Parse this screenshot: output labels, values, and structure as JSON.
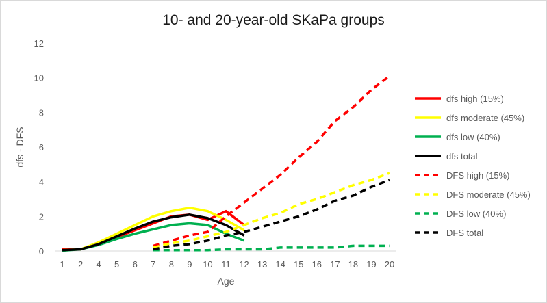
{
  "chart_data": {
    "type": "line",
    "title": "10- and 20-year-old SKaPa groups",
    "xlabel": "Age",
    "ylabel": "dfs - DFS",
    "categories": [
      "1",
      "2",
      "4",
      "5",
      "6",
      "7",
      "8",
      "9",
      "10",
      "11",
      "12",
      "13",
      "14",
      "15",
      "16",
      "17",
      "18",
      "19",
      "20"
    ],
    "ylim": [
      0,
      12
    ],
    "yticks": [
      "0",
      "2",
      "4",
      "6",
      "8",
      "10",
      "12"
    ],
    "grid": false,
    "legend_position": "right",
    "series": [
      {
        "name": "dfs high (15%)",
        "color": "#ff0000",
        "dash": false,
        "values": [
          0.1,
          0.1,
          0.4,
          0.8,
          1.2,
          1.6,
          2.0,
          2.1,
          1.8,
          2.3,
          1.5,
          null,
          null,
          null,
          null,
          null,
          null,
          null,
          null
        ]
      },
      {
        "name": "dfs moderate (45%)",
        "color": "#ffff00",
        "dash": false,
        "values": [
          0.05,
          0.1,
          0.5,
          1.0,
          1.5,
          2.0,
          2.3,
          2.5,
          2.3,
          1.8,
          1.2,
          null,
          null,
          null,
          null,
          null,
          null,
          null,
          null
        ]
      },
      {
        "name": "dfs low (40%)",
        "color": "#00b050",
        "dash": false,
        "values": [
          0.02,
          0.1,
          0.35,
          0.7,
          1.0,
          1.25,
          1.5,
          1.6,
          1.5,
          1.0,
          0.6,
          null,
          null,
          null,
          null,
          null,
          null,
          null,
          null
        ]
      },
      {
        "name": "dfs total",
        "color": "#000000",
        "dash": false,
        "values": [
          0.05,
          0.1,
          0.4,
          0.85,
          1.3,
          1.7,
          1.95,
          2.1,
          1.9,
          1.5,
          0.9,
          null,
          null,
          null,
          null,
          null,
          null,
          null,
          null
        ]
      },
      {
        "name": "DFS high (15%)",
        "color": "#ff0000",
        "dash": true,
        "values": [
          null,
          null,
          null,
          null,
          null,
          0.3,
          0.6,
          0.9,
          1.1,
          2.0,
          2.8,
          3.6,
          4.4,
          5.4,
          6.3,
          7.5,
          8.3,
          9.3,
          10.1
        ]
      },
      {
        "name": "DFS moderate (45%)",
        "color": "#ffff00",
        "dash": true,
        "values": [
          null,
          null,
          null,
          null,
          null,
          0.2,
          0.45,
          0.6,
          0.85,
          1.1,
          1.5,
          1.9,
          2.2,
          2.7,
          3.0,
          3.4,
          3.8,
          4.1,
          4.5
        ]
      },
      {
        "name": "DFS low (40%)",
        "color": "#00b050",
        "dash": true,
        "values": [
          null,
          null,
          null,
          null,
          null,
          0.05,
          0.05,
          0.05,
          0.05,
          0.1,
          0.1,
          0.1,
          0.2,
          0.2,
          0.2,
          0.2,
          0.3,
          0.3,
          0.3
        ]
      },
      {
        "name": "DFS total",
        "color": "#000000",
        "dash": true,
        "values": [
          null,
          null,
          null,
          null,
          null,
          0.1,
          0.3,
          0.4,
          0.6,
          0.9,
          1.1,
          1.4,
          1.7,
          2.0,
          2.4,
          2.9,
          3.2,
          3.7,
          4.1
        ]
      }
    ]
  }
}
